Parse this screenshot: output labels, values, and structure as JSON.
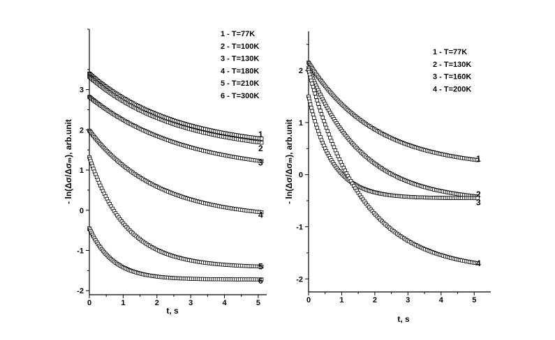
{
  "chart_data": [
    {
      "type": "scatter",
      "title": "",
      "xlabel": "t, s",
      "ylabel": "- ln(Δσ/Δσₘ), arb.unit",
      "xlim": [
        0,
        5.25
      ],
      "ylim": [
        -2.1,
        4.5
      ],
      "xticks": [
        "0",
        "1",
        "2",
        "3",
        "4",
        "5"
      ],
      "yticks": [
        "-2",
        "-1",
        "0",
        "1",
        "2",
        "3"
      ],
      "xtick_values": [
        0,
        1,
        2,
        3,
        4,
        5
      ],
      "ytick_values": [
        -2,
        -1,
        0,
        1,
        2,
        3
      ],
      "grid": false,
      "legend_position": "top-right",
      "legend": [
        "1 - T=77K",
        "2 - T=100K",
        "3 - T=130K",
        "4 - T=180K",
        "5 - T=210K",
        "6 - T=300K"
      ],
      "series": [
        {
          "name": "1",
          "y0": 3.4,
          "y_end": 1.78,
          "tau": 2.6
        },
        {
          "name": "2",
          "y0": 3.32,
          "y_end": 1.68,
          "tau": 2.6
        },
        {
          "name": "3",
          "y0": 2.82,
          "y_end": 1.22,
          "tau": 2.8
        },
        {
          "name": "4",
          "y0": 1.98,
          "y_end": -0.05,
          "tau": 2.0
        },
        {
          "name": "5",
          "y0": 1.32,
          "y_end": -1.4,
          "tau": 1.1
        },
        {
          "name": "6",
          "y0": -0.45,
          "y_end": -1.72,
          "tau": 0.7
        }
      ]
    },
    {
      "type": "scatter",
      "title": "",
      "xlabel": "t, s",
      "ylabel": "- ln(Δσ/Δσₘ), arb.unit",
      "xlim": [
        0,
        5.5
      ],
      "ylim": [
        -2.25,
        2.75
      ],
      "xticks": [
        "0",
        "1",
        "2",
        "3",
        "4",
        "5"
      ],
      "yticks": [
        "-2",
        "-1",
        "0",
        "1",
        "2"
      ],
      "xtick_values": [
        0,
        1,
        2,
        3,
        4,
        5
      ],
      "ytick_values": [
        -2,
        -1,
        0,
        1,
        2
      ],
      "grid": false,
      "legend_position": "top-right",
      "legend": [
        "1 - T=77K",
        "2 - T=130K",
        "3 - T=160K",
        "4 - T=200K"
      ],
      "series": [
        {
          "name": "1",
          "y0": 2.15,
          "y_end": 0.28,
          "tau": 2.0
        },
        {
          "name": "2",
          "y0": 2.05,
          "y_end": -0.42,
          "tau": 1.6
        },
        {
          "name": "3",
          "y0": 1.5,
          "y_end": -0.45,
          "tau": 0.7
        },
        {
          "name": "4",
          "y0": 2.0,
          "y_end": -1.7,
          "tau": 1.6
        }
      ]
    }
  ]
}
